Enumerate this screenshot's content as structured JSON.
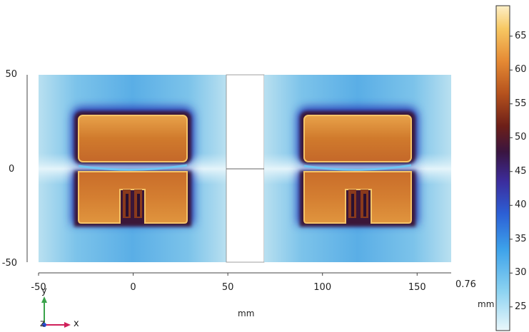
{
  "plot": {
    "x_axis": {
      "tick_labels": [
        "-50",
        "0",
        "50",
        "100",
        "150"
      ],
      "tick_values": [
        -50,
        0,
        50,
        100,
        150
      ],
      "extra_label": "0.76",
      "unit_label": "mm",
      "range": [
        -50,
        168
      ]
    },
    "y_axis": {
      "tick_labels": [
        "50",
        "0",
        "-50"
      ],
      "range": [
        -50,
        50
      ]
    },
    "colorbar": {
      "tick_labels": [
        "65",
        "60",
        "55",
        "50",
        "45",
        "40",
        "35",
        "30",
        "25"
      ],
      "tick_values": [
        65,
        60,
        55,
        50,
        45,
        40,
        35,
        30,
        25
      ],
      "range": [
        21.5,
        69.5
      ],
      "unit_label": "mm",
      "colormap": [
        "#e8f6fb",
        "#8ed3f2",
        "#3ea3ea",
        "#2b5fd6",
        "#3a2a9a",
        "#3a143f",
        "#6e1f18",
        "#b5521d",
        "#e58a34",
        "#f7c863",
        "#fdeec4"
      ]
    },
    "triad": {
      "y_label": "y",
      "z_label": "z",
      "x_label": "x",
      "y_color": "#3aa34a",
      "x_color": "#d0205a",
      "z_color": "#2a4bd0"
    }
  }
}
